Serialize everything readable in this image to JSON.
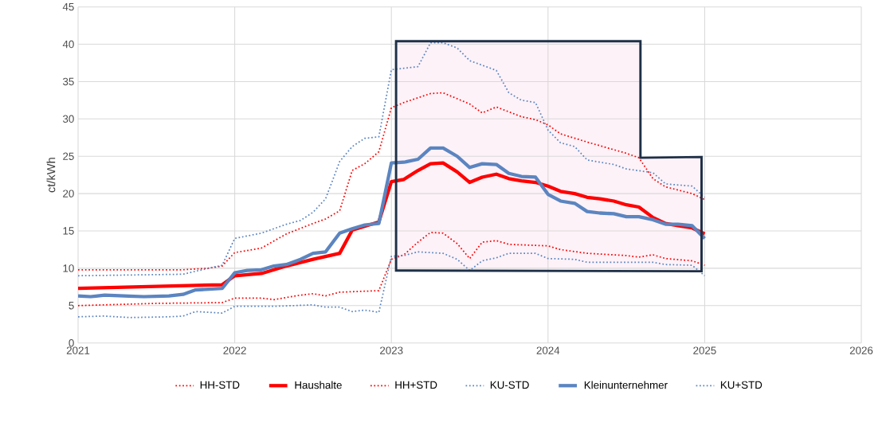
{
  "chart_data": {
    "type": "line",
    "ylabel": "ct/kWh",
    "xlim": [
      2021,
      2026
    ],
    "xticks": [
      2021,
      2022,
      2023,
      2024,
      2025,
      2026
    ],
    "ylim": [
      0,
      45
    ],
    "yticks": [
      0,
      5,
      10,
      15,
      20,
      25,
      30,
      35,
      40,
      45
    ],
    "grid": true,
    "legend": "bottom",
    "marker": "none",
    "series": [
      {
        "name": "HH-STD",
        "color": "#ff0000",
        "line_style": "dotted",
        "x": [
          2021.0,
          2021.5,
          2021.92,
          2022.0,
          2022.17,
          2022.25,
          2022.42,
          2022.5,
          2022.58,
          2022.67,
          2022.92,
          2023.0,
          2023.08,
          2023.17,
          2023.25,
          2023.33,
          2023.42,
          2023.5,
          2023.58,
          2023.67,
          2023.75,
          2024.0,
          2024.08,
          2024.25,
          2024.5,
          2024.58,
          2024.67,
          2024.75,
          2024.92,
          2025.0
        ],
        "values": [
          5.0,
          5.3,
          5.4,
          6.0,
          6.0,
          5.8,
          6.4,
          6.6,
          6.3,
          6.8,
          7.0,
          11.2,
          11.8,
          13.5,
          14.8,
          14.7,
          13.3,
          11.3,
          13.5,
          13.7,
          13.2,
          13.0,
          12.5,
          12.0,
          11.7,
          11.5,
          11.8,
          11.3,
          11.0,
          10.4
        ]
      },
      {
        "name": "Haushalte",
        "color": "#ff0000",
        "line_style": "solid",
        "x": [
          2021.0,
          2021.92,
          2022.0,
          2022.17,
          2022.33,
          2022.5,
          2022.67,
          2022.75,
          2022.92,
          2023.0,
          2023.08,
          2023.17,
          2023.25,
          2023.33,
          2023.42,
          2023.5,
          2023.58,
          2023.67,
          2023.75,
          2023.83,
          2023.92,
          2024.0,
          2024.08,
          2024.17,
          2024.25,
          2024.33,
          2024.42,
          2024.5,
          2024.58,
          2024.67,
          2024.75,
          2024.83,
          2024.92,
          2025.0
        ],
        "values": [
          7.3,
          7.8,
          9.0,
          9.3,
          10.3,
          11.2,
          12.0,
          15.1,
          16.2,
          21.6,
          21.9,
          23.1,
          24.0,
          24.1,
          22.9,
          21.5,
          22.2,
          22.6,
          22.0,
          21.7,
          21.5,
          21.0,
          20.3,
          20.0,
          19.5,
          19.3,
          19.0,
          18.5,
          18.2,
          16.8,
          16.0,
          15.7,
          15.4,
          14.6
        ]
      },
      {
        "name": "HH+STD",
        "color": "#ff0000",
        "line_style": "dotted",
        "x": [
          2021.0,
          2021.67,
          2021.83,
          2021.92,
          2022.0,
          2022.17,
          2022.33,
          2022.5,
          2022.58,
          2022.67,
          2022.75,
          2022.83,
          2022.92,
          2023.0,
          2023.08,
          2023.25,
          2023.33,
          2023.5,
          2023.58,
          2023.67,
          2023.83,
          2023.92,
          2024.0,
          2024.08,
          2024.25,
          2024.5,
          2024.58,
          2024.67,
          2024.75,
          2024.92,
          2025.0
        ],
        "values": [
          9.8,
          9.8,
          10.0,
          10.3,
          12.1,
          12.7,
          14.6,
          16.0,
          16.6,
          17.7,
          23.1,
          24.0,
          25.6,
          31.5,
          32.2,
          33.4,
          33.5,
          32.0,
          30.8,
          31.6,
          30.3,
          29.9,
          29.2,
          28.0,
          26.9,
          25.4,
          24.8,
          22.0,
          20.9,
          20.0,
          19.2
        ]
      },
      {
        "name": "KU-STD",
        "color": "#5b85c0",
        "line_style": "dotted",
        "x": [
          2021.0,
          2021.17,
          2021.33,
          2021.58,
          2021.67,
          2021.75,
          2021.92,
          2022.0,
          2022.25,
          2022.5,
          2022.58,
          2022.67,
          2022.75,
          2022.83,
          2022.92,
          2023.0,
          2023.08,
          2023.17,
          2023.33,
          2023.42,
          2023.5,
          2023.58,
          2023.67,
          2023.75,
          2023.92,
          2024.0,
          2024.17,
          2024.25,
          2024.42,
          2024.67,
          2024.75,
          2024.92,
          2025.0
        ],
        "values": [
          3.5,
          3.6,
          3.4,
          3.5,
          3.6,
          4.2,
          4.0,
          4.9,
          4.9,
          5.1,
          4.8,
          4.8,
          4.2,
          4.4,
          4.1,
          11.6,
          11.7,
          12.2,
          12.0,
          11.2,
          9.7,
          11.0,
          11.4,
          12.0,
          12.0,
          11.3,
          11.2,
          10.8,
          10.8,
          10.8,
          10.5,
          10.4,
          9.0
        ]
      },
      {
        "name": "Kleinunternehmer",
        "color": "#5b85c0",
        "line_style": "solid",
        "x": [
          2021.0,
          2021.08,
          2021.17,
          2021.42,
          2021.58,
          2021.67,
          2021.75,
          2021.92,
          2022.0,
          2022.08,
          2022.17,
          2022.25,
          2022.33,
          2022.42,
          2022.5,
          2022.58,
          2022.67,
          2022.75,
          2022.83,
          2022.92,
          2023.0,
          2023.08,
          2023.17,
          2023.25,
          2023.33,
          2023.42,
          2023.5,
          2023.58,
          2023.67,
          2023.75,
          2023.83,
          2023.92,
          2024.0,
          2024.08,
          2024.17,
          2024.25,
          2024.33,
          2024.42,
          2024.5,
          2024.58,
          2024.67,
          2024.75,
          2024.83,
          2024.92,
          2025.0
        ],
        "values": [
          6.3,
          6.2,
          6.4,
          6.2,
          6.3,
          6.5,
          7.1,
          7.3,
          9.4,
          9.7,
          9.8,
          10.3,
          10.5,
          11.2,
          12.0,
          12.2,
          14.7,
          15.3,
          15.8,
          16.0,
          24.1,
          24.2,
          24.6,
          26.1,
          26.1,
          25.0,
          23.5,
          24.0,
          23.9,
          22.7,
          22.3,
          22.2,
          19.9,
          19.0,
          18.7,
          17.6,
          17.4,
          17.3,
          16.9,
          16.9,
          16.5,
          15.9,
          15.9,
          15.7,
          14.0
        ]
      },
      {
        "name": "KU+STD",
        "color": "#5b85c0",
        "line_style": "dotted",
        "x": [
          2021.0,
          2021.67,
          2021.75,
          2021.92,
          2022.0,
          2022.17,
          2022.33,
          2022.42,
          2022.5,
          2022.58,
          2022.67,
          2022.75,
          2022.83,
          2022.92,
          2023.0,
          2023.17,
          2023.25,
          2023.33,
          2023.42,
          2023.5,
          2023.67,
          2023.75,
          2023.83,
          2023.92,
          2024.0,
          2024.08,
          2024.17,
          2024.25,
          2024.42,
          2024.5,
          2024.67,
          2024.75,
          2024.92,
          2025.0
        ],
        "values": [
          9.0,
          9.2,
          9.6,
          10.4,
          14.0,
          14.7,
          15.9,
          16.4,
          17.5,
          19.3,
          24.3,
          26.3,
          27.4,
          27.6,
          36.6,
          37.0,
          40.2,
          40.2,
          39.5,
          37.8,
          36.5,
          33.5,
          32.5,
          32.2,
          28.5,
          26.8,
          26.3,
          24.5,
          23.9,
          23.3,
          22.8,
          21.3,
          21.0,
          19.5
        ]
      }
    ]
  }
}
